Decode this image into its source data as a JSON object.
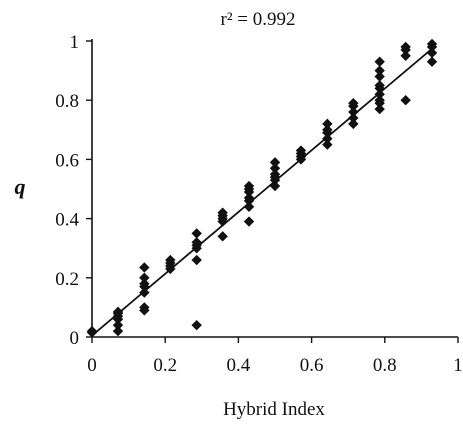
{
  "chart_data": {
    "type": "scatter",
    "title": "r² = 0.992",
    "xlabel": "Hybrid Index",
    "ylabel": "q",
    "xlim": [
      0,
      1
    ],
    "ylim": [
      0,
      1
    ],
    "grid": false,
    "legend": "none",
    "x_ticks": [
      "0",
      "0.2",
      "0.4",
      "0.6",
      "0.8",
      "1"
    ],
    "y_ticks": [
      "0",
      "0.2",
      "0.4",
      "0.6",
      "0.8",
      "1"
    ],
    "marker_color": "#111111",
    "fit_line": {
      "x": [
        0,
        0.93
      ],
      "y": [
        0.005,
        0.975
      ]
    },
    "points": [
      [
        0.0,
        0.02
      ],
      [
        0.0,
        0.015
      ],
      [
        0.071,
        0.02
      ],
      [
        0.071,
        0.04
      ],
      [
        0.071,
        0.06
      ],
      [
        0.071,
        0.07
      ],
      [
        0.071,
        0.08
      ],
      [
        0.071,
        0.085
      ],
      [
        0.143,
        0.09
      ],
      [
        0.143,
        0.1
      ],
      [
        0.143,
        0.15
      ],
      [
        0.143,
        0.17
      ],
      [
        0.143,
        0.18
      ],
      [
        0.143,
        0.2
      ],
      [
        0.143,
        0.235
      ],
      [
        0.214,
        0.23
      ],
      [
        0.214,
        0.24
      ],
      [
        0.214,
        0.25
      ],
      [
        0.214,
        0.26
      ],
      [
        0.286,
        0.04
      ],
      [
        0.286,
        0.26
      ],
      [
        0.286,
        0.3
      ],
      [
        0.286,
        0.31
      ],
      [
        0.286,
        0.32
      ],
      [
        0.286,
        0.35
      ],
      [
        0.357,
        0.34
      ],
      [
        0.357,
        0.39
      ],
      [
        0.357,
        0.4
      ],
      [
        0.357,
        0.41
      ],
      [
        0.357,
        0.42
      ],
      [
        0.429,
        0.39
      ],
      [
        0.429,
        0.44
      ],
      [
        0.429,
        0.46
      ],
      [
        0.429,
        0.47
      ],
      [
        0.429,
        0.49
      ],
      [
        0.429,
        0.5
      ],
      [
        0.429,
        0.51
      ],
      [
        0.5,
        0.51
      ],
      [
        0.5,
        0.53
      ],
      [
        0.5,
        0.54
      ],
      [
        0.5,
        0.55
      ],
      [
        0.5,
        0.57
      ],
      [
        0.5,
        0.59
      ],
      [
        0.571,
        0.6
      ],
      [
        0.571,
        0.61
      ],
      [
        0.571,
        0.62
      ],
      [
        0.571,
        0.63
      ],
      [
        0.643,
        0.65
      ],
      [
        0.643,
        0.67
      ],
      [
        0.643,
        0.69
      ],
      [
        0.643,
        0.7
      ],
      [
        0.643,
        0.72
      ],
      [
        0.714,
        0.72
      ],
      [
        0.714,
        0.74
      ],
      [
        0.714,
        0.76
      ],
      [
        0.714,
        0.78
      ],
      [
        0.714,
        0.79
      ],
      [
        0.786,
        0.77
      ],
      [
        0.786,
        0.79
      ],
      [
        0.786,
        0.8
      ],
      [
        0.786,
        0.82
      ],
      [
        0.786,
        0.84
      ],
      [
        0.786,
        0.85
      ],
      [
        0.786,
        0.88
      ],
      [
        0.786,
        0.9
      ],
      [
        0.786,
        0.93
      ],
      [
        0.857,
        0.8
      ],
      [
        0.857,
        0.95
      ],
      [
        0.857,
        0.97
      ],
      [
        0.857,
        0.98
      ],
      [
        0.929,
        0.93
      ],
      [
        0.929,
        0.96
      ],
      [
        0.929,
        0.98
      ],
      [
        0.929,
        0.99
      ]
    ]
  }
}
